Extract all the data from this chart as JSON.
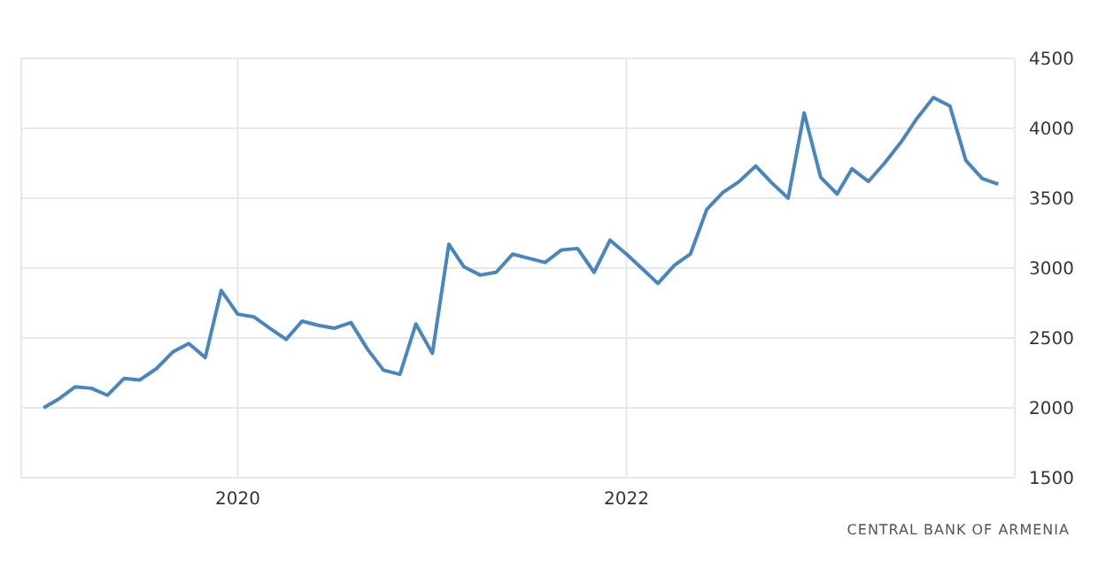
{
  "chart_data": {
    "type": "line",
    "x": [
      "2019-01",
      "2019-02",
      "2019-03",
      "2019-04",
      "2019-05",
      "2019-06",
      "2019-07",
      "2019-08",
      "2019-09",
      "2019-10",
      "2019-11",
      "2019-12",
      "2020-01",
      "2020-02",
      "2020-03",
      "2020-04",
      "2020-05",
      "2020-06",
      "2020-07",
      "2020-08",
      "2020-09",
      "2020-10",
      "2020-11",
      "2020-12",
      "2021-01",
      "2021-02",
      "2021-03",
      "2021-04",
      "2021-05",
      "2021-06",
      "2021-07",
      "2021-08",
      "2021-09",
      "2021-10",
      "2021-11",
      "2021-12",
      "2022-01",
      "2022-02",
      "2022-03",
      "2022-04",
      "2022-05",
      "2022-06",
      "2022-07",
      "2022-08",
      "2022-09",
      "2022-10",
      "2022-11",
      "2022-12",
      "2023-01",
      "2023-02",
      "2023-03",
      "2023-04",
      "2023-05",
      "2023-06",
      "2023-07",
      "2023-08",
      "2023-09",
      "2023-10",
      "2023-11",
      "2023-12"
    ],
    "series": [
      {
        "color": "#4a86be",
        "values": [
          2000,
          2070,
          2150,
          2140,
          2090,
          2210,
          2200,
          2280,
          2400,
          2460,
          2360,
          2840,
          2670,
          2650,
          2570,
          2490,
          2620,
          2590,
          2570,
          2610,
          2420,
          2270,
          2240,
          2600,
          2390,
          3170,
          3010,
          2950,
          2970,
          3100,
          3070,
          3040,
          3130,
          3140,
          2970,
          3200,
          3100,
          2990,
          2890,
          3020,
          3100,
          3420,
          3540,
          3620,
          3730,
          3610,
          3500,
          4110,
          3650,
          3530,
          3710,
          3620,
          3750,
          3900,
          4070,
          4220,
          4160,
          3770,
          3640,
          3600
        ]
      }
    ],
    "xlim": [
      "2018-11-20",
      "2024-01-01"
    ],
    "xticks": [
      "2020",
      "2022"
    ],
    "ylim": [
      1500,
      4500
    ],
    "yticks": [
      1500,
      2000,
      2500,
      3000,
      3500,
      4000,
      4500
    ],
    "grid": true,
    "legend": false,
    "marker": "none",
    "line_style": "solid",
    "annotations": [
      "CENTRAL BANK OF ARMENIA"
    ]
  }
}
